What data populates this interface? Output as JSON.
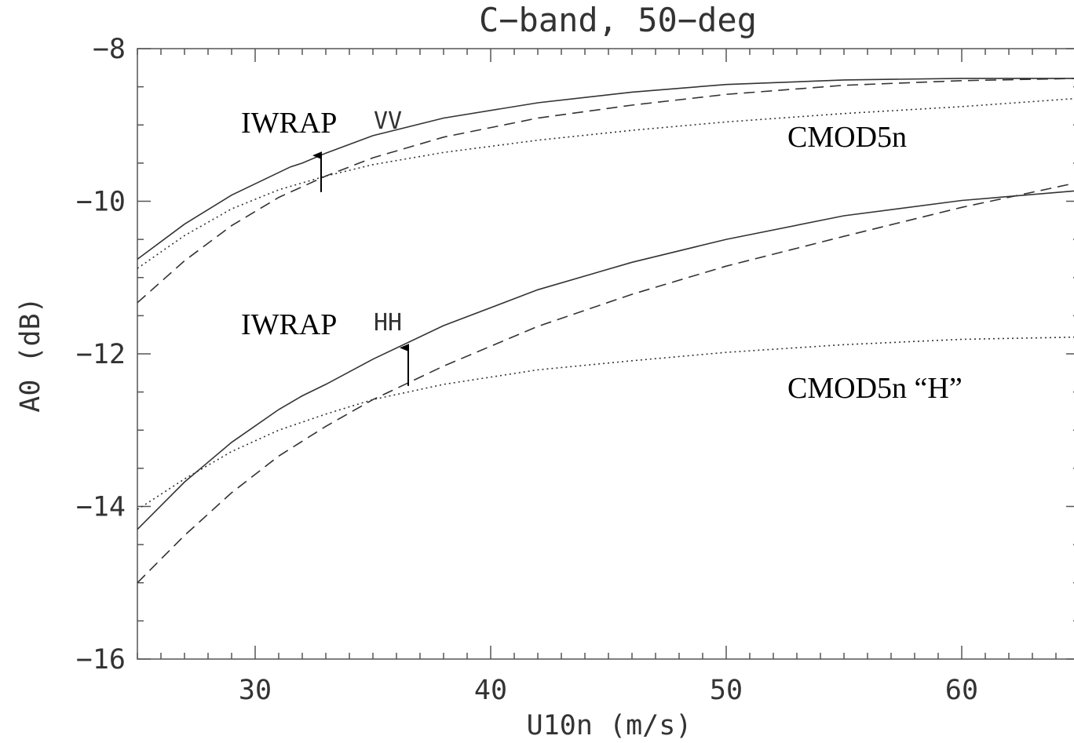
{
  "chart_data": {
    "type": "line",
    "title": "C−band, 50−deg",
    "xlabel": "U10n (m/s)",
    "ylabel": "A0 (dB)",
    "xlim": [
      25,
      65
    ],
    "ylim": [
      -16,
      -8
    ],
    "x_ticks": [
      30,
      40,
      50,
      60
    ],
    "x_tick_labels": [
      "30",
      "40",
      "50",
      "60"
    ],
    "y_ticks": [
      -16,
      -14,
      -12,
      -10,
      -8
    ],
    "y_tick_labels": [
      "−16",
      "−14",
      "−12",
      "−10",
      "−8"
    ],
    "grid": false,
    "series": [
      {
        "group": "VV",
        "style": "solid",
        "x": [
          25,
          27,
          29,
          31.5,
          32,
          33,
          35,
          38,
          42,
          46,
          50,
          55,
          60,
          65
        ],
        "y": [
          -10.76,
          -10.3,
          -9.92,
          -9.55,
          -9.5,
          -9.37,
          -9.14,
          -8.91,
          -8.71,
          -8.57,
          -8.47,
          -8.41,
          -8.39,
          -8.39
        ]
      },
      {
        "group": "VV",
        "style": "dashed",
        "x": [
          25,
          27,
          29,
          31,
          33,
          35,
          38,
          42,
          46,
          50,
          55,
          60,
          65
        ],
        "y": [
          -11.33,
          -10.78,
          -10.32,
          -9.95,
          -9.67,
          -9.43,
          -9.16,
          -8.91,
          -8.74,
          -8.6,
          -8.48,
          -8.42,
          -8.39
        ]
      },
      {
        "group": "VV",
        "style": "dotted",
        "x": [
          25,
          27,
          29,
          31,
          33,
          35,
          38,
          42,
          46,
          50,
          55,
          60,
          65
        ],
        "y": [
          -10.88,
          -10.45,
          -10.1,
          -9.85,
          -9.67,
          -9.52,
          -9.36,
          -9.2,
          -9.07,
          -8.96,
          -8.85,
          -8.76,
          -8.65
        ]
      },
      {
        "group": "HH",
        "style": "solid",
        "x": [
          25,
          27,
          29,
          31,
          32,
          33,
          35,
          38,
          42,
          46,
          50,
          55,
          60,
          65
        ],
        "y": [
          -14.3,
          -13.68,
          -13.16,
          -12.73,
          -12.55,
          -12.4,
          -12.07,
          -11.63,
          -11.16,
          -10.8,
          -10.5,
          -10.19,
          -9.99,
          -9.86
        ]
      },
      {
        "group": "HH",
        "style": "dashed",
        "x": [
          25,
          27,
          29,
          31,
          33,
          35,
          38,
          42,
          46,
          50,
          55,
          60,
          65
        ],
        "y": [
          -15.0,
          -14.38,
          -13.82,
          -13.34,
          -12.95,
          -12.6,
          -12.16,
          -11.64,
          -11.22,
          -10.85,
          -10.46,
          -10.08,
          -9.75
        ]
      },
      {
        "group": "HH",
        "style": "dotted",
        "x": [
          25,
          27,
          29,
          31,
          33,
          35,
          38,
          42,
          46,
          50,
          55,
          60,
          65
        ],
        "y": [
          -14.04,
          -13.64,
          -13.28,
          -13.0,
          -12.79,
          -12.6,
          -12.4,
          -12.21,
          -12.09,
          -11.98,
          -11.88,
          -11.81,
          -11.78
        ]
      }
    ],
    "annotations": {
      "iwrap_vv": "IWRAP",
      "vv": "VV",
      "cmod5n": "CMOD5n",
      "iwrap_hh": "IWRAP",
      "hh": "HH",
      "cmod5n_h": "CMOD5n “H”"
    },
    "arrows": [
      {
        "from": [
          32.8,
          -9.88
        ],
        "to": [
          32.8,
          -9.4
        ]
      },
      {
        "from": [
          36.5,
          -12.42
        ],
        "to": [
          36.5,
          -11.92
        ]
      }
    ]
  }
}
